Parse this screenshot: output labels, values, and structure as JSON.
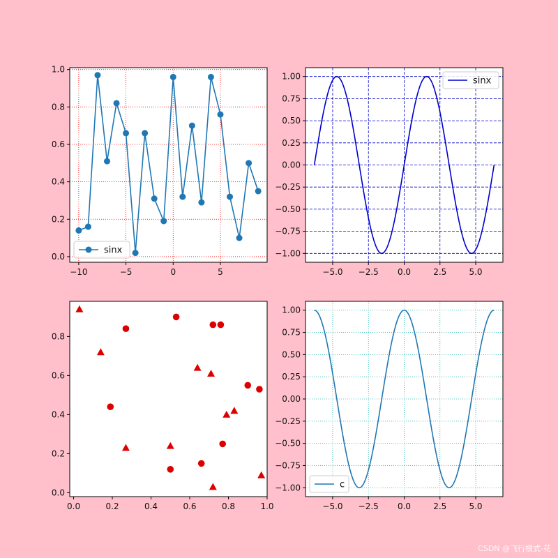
{
  "watermark": "CSDN @飞行模式-花",
  "colors": {
    "background": "#ffc0cb",
    "tab_blue": "#1f77b4",
    "blue": "#0000cc",
    "red_grid": "#ff0000",
    "red_marker": "#dd0000",
    "cyan_grid": "#20b2aa"
  },
  "chart_data": [
    {
      "id": "random-line",
      "type": "line",
      "title": "",
      "xlabel": "",
      "ylabel": "",
      "xlim": [
        -10.95,
        9.95
      ],
      "ylim": [
        -0.03,
        1.01
      ],
      "xticks": [
        -10,
        -5,
        0,
        5
      ],
      "yticks": [
        0.0,
        0.2,
        0.4,
        0.6,
        0.8,
        1.0
      ],
      "grid": {
        "on": true,
        "color": "red",
        "style": "dotted"
      },
      "legend": "lower-left",
      "series": [
        {
          "name": "sinx",
          "marker": "circle",
          "x": [
            -10,
            -9,
            -8,
            -7,
            -6,
            -5,
            -4,
            -3,
            -2,
            -1,
            0,
            1,
            2,
            3,
            4,
            5,
            6,
            7,
            8,
            9
          ],
          "y": [
            0.14,
            0.16,
            0.97,
            0.51,
            0.82,
            0.66,
            0.02,
            0.66,
            0.31,
            0.19,
            0.96,
            0.32,
            0.7,
            0.29,
            0.96,
            0.76,
            0.32,
            0.1,
            0.5,
            0.35
          ]
        }
      ]
    },
    {
      "id": "sine",
      "type": "line",
      "title": "",
      "xlabel": "",
      "ylabel": "",
      "xlim": [
        -6.9,
        6.9
      ],
      "ylim": [
        -1.1,
        1.1
      ],
      "xticks": [
        -5.0,
        -2.5,
        0.0,
        2.5,
        5.0
      ],
      "yticks": [
        -1.0,
        -0.75,
        -0.5,
        -0.25,
        0.0,
        0.25,
        0.5,
        0.75,
        1.0
      ],
      "grid": {
        "on": true,
        "color": "blue",
        "style": "dashed"
      },
      "legend": "top-right",
      "series": [
        {
          "name": "sinx",
          "function": "sin",
          "x_range": [
            -6.283,
            6.283
          ]
        }
      ]
    },
    {
      "id": "random-scatter",
      "type": "scatter",
      "title": "",
      "xlabel": "",
      "ylabel": "",
      "xlim": [
        -0.02,
        1.0
      ],
      "ylim": [
        -0.02,
        0.98
      ],
      "xticks": [
        0.0,
        0.2,
        0.4,
        0.6,
        0.8,
        1.0
      ],
      "yticks": [
        0.0,
        0.2,
        0.4,
        0.6,
        0.8
      ],
      "grid": {
        "on": false
      },
      "legend": "none",
      "series": [
        {
          "marker": "circle",
          "x": [
            0.19,
            0.27,
            0.5,
            0.53,
            0.66,
            0.72,
            0.76,
            0.77,
            0.9,
            0.96
          ],
          "y": [
            0.44,
            0.84,
            0.12,
            0.9,
            0.15,
            0.86,
            0.86,
            0.25,
            0.55,
            0.53
          ]
        },
        {
          "marker": "triangle",
          "x": [
            0.03,
            0.14,
            0.27,
            0.5,
            0.64,
            0.71,
            0.72,
            0.79,
            0.83,
            0.97
          ],
          "y": [
            0.94,
            0.72,
            0.23,
            0.24,
            0.64,
            0.61,
            0.03,
            0.4,
            0.42,
            0.09
          ]
        }
      ]
    },
    {
      "id": "cosine",
      "type": "line",
      "title": "",
      "xlabel": "",
      "ylabel": "",
      "xlim": [
        -6.9,
        6.9
      ],
      "ylim": [
        -1.1,
        1.1
      ],
      "xticks": [
        -5.0,
        -2.5,
        0.0,
        2.5,
        5.0
      ],
      "yticks": [
        -1.0,
        -0.75,
        -0.5,
        -0.25,
        0.0,
        0.25,
        0.5,
        0.75,
        1.0
      ],
      "grid": {
        "on": true,
        "color": "cyan",
        "style": "dotted"
      },
      "legend": "lower-left",
      "series": [
        {
          "name": "c",
          "function": "cos",
          "x_range": [
            -6.283,
            6.283
          ]
        }
      ]
    }
  ]
}
